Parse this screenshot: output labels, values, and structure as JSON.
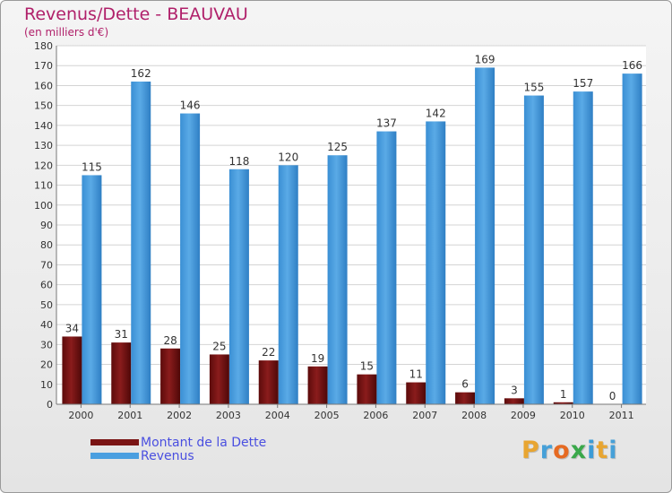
{
  "header": {
    "title": "Revenus/Dette - BEAUVAU",
    "subtitle": "(en milliers d'€)"
  },
  "legend": {
    "debt_label": "Montant de la Dette",
    "revenue_label": "Revenus"
  },
  "brand": {
    "letters": [
      "P",
      "r",
      "o",
      "x",
      "i",
      "t",
      "i"
    ],
    "colors": [
      "#e8a531",
      "#46a0d8",
      "#e66a22",
      "#3aa84a",
      "#3c9bd6",
      "#e8a531",
      "#46a0d8"
    ]
  },
  "chart_data": {
    "type": "bar",
    "title": "Revenus/Dette - BEAUVAU",
    "subtitle": "(en milliers d'€)",
    "categories": [
      "2000",
      "2001",
      "2002",
      "2003",
      "2004",
      "2005",
      "2006",
      "2007",
      "2008",
      "2009",
      "2010",
      "2011"
    ],
    "series": [
      {
        "name": "Montant de la Dette",
        "color": "#7a1414",
        "values": [
          34,
          31,
          28,
          25,
          22,
          19,
          15,
          11,
          6,
          3,
          1,
          0
        ]
      },
      {
        "name": "Revenus",
        "color": "#4a9fe0",
        "values": [
          115,
          162,
          146,
          118,
          120,
          125,
          137,
          142,
          169,
          155,
          157,
          166
        ]
      }
    ],
    "ylim": [
      0,
      180
    ],
    "yticks": [
      0,
      10,
      20,
      30,
      40,
      50,
      60,
      70,
      80,
      90,
      100,
      110,
      120,
      130,
      140,
      150,
      160,
      170,
      180
    ],
    "grid": true,
    "legend_position": "bottom-left"
  }
}
